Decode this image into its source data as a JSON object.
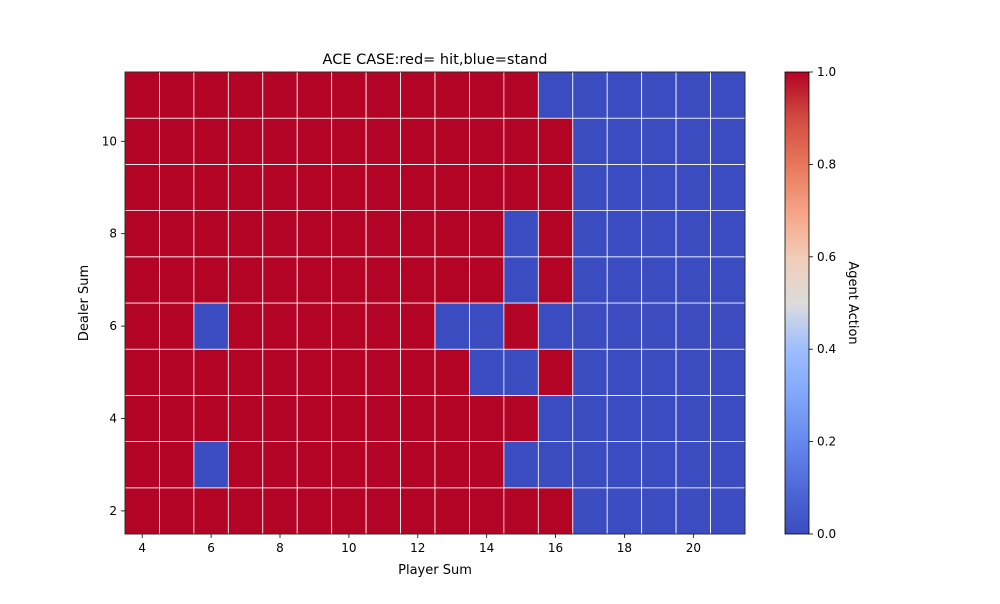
{
  "chart_data": {
    "type": "heatmap",
    "title": "ACE CASE:red= hit,blue=stand",
    "xlabel": "Player Sum",
    "ylabel": "Dealer Sum",
    "x": [
      4,
      5,
      6,
      7,
      8,
      9,
      10,
      11,
      12,
      13,
      14,
      15,
      16,
      17,
      18,
      19,
      20,
      21
    ],
    "y": [
      2,
      3,
      4,
      5,
      6,
      7,
      8,
      9,
      10,
      11
    ],
    "x_ticks": [
      4,
      6,
      8,
      10,
      12,
      14,
      16,
      18,
      20
    ],
    "y_ticks": [
      2,
      4,
      6,
      8,
      10
    ],
    "values": [
      [
        1,
        1,
        1,
        1,
        1,
        1,
        1,
        1,
        1,
        1,
        1,
        1,
        1,
        0,
        0,
        0,
        0,
        0
      ],
      [
        1,
        1,
        0,
        1,
        1,
        1,
        1,
        1,
        1,
        1,
        1,
        0,
        0,
        0,
        0,
        0,
        0,
        0
      ],
      [
        1,
        1,
        1,
        1,
        1,
        1,
        1,
        1,
        1,
        1,
        1,
        1,
        0,
        0,
        0,
        0,
        0,
        0
      ],
      [
        1,
        1,
        1,
        1,
        1,
        1,
        1,
        1,
        1,
        1,
        0,
        0,
        1,
        0,
        0,
        0,
        0,
        0
      ],
      [
        1,
        1,
        0,
        1,
        1,
        1,
        1,
        1,
        1,
        0,
        0,
        1,
        0,
        0,
        0,
        0,
        0,
        0
      ],
      [
        1,
        1,
        1,
        1,
        1,
        1,
        1,
        1,
        1,
        1,
        1,
        0,
        1,
        0,
        0,
        0,
        0,
        0
      ],
      [
        1,
        1,
        1,
        1,
        1,
        1,
        1,
        1,
        1,
        1,
        1,
        0,
        1,
        0,
        0,
        0,
        0,
        0
      ],
      [
        1,
        1,
        1,
        1,
        1,
        1,
        1,
        1,
        1,
        1,
        1,
        1,
        1,
        0,
        0,
        0,
        0,
        0
      ],
      [
        1,
        1,
        1,
        1,
        1,
        1,
        1,
        1,
        1,
        1,
        1,
        1,
        1,
        0,
        0,
        0,
        0,
        0
      ],
      [
        1,
        1,
        1,
        1,
        1,
        1,
        1,
        1,
        1,
        1,
        1,
        1,
        0,
        0,
        0,
        0,
        0,
        0
      ]
    ],
    "colormap": "coolwarm",
    "color_low": "#3b4cc0",
    "color_high": "#b40426",
    "colorbar": {
      "label": "Agent Action",
      "range": [
        0.0,
        1.0
      ],
      "ticks": [
        "0.0",
        "0.2",
        "0.4",
        "0.6",
        "0.8",
        "1.0"
      ]
    },
    "grid": true,
    "grid_color": "#ffffff"
  }
}
